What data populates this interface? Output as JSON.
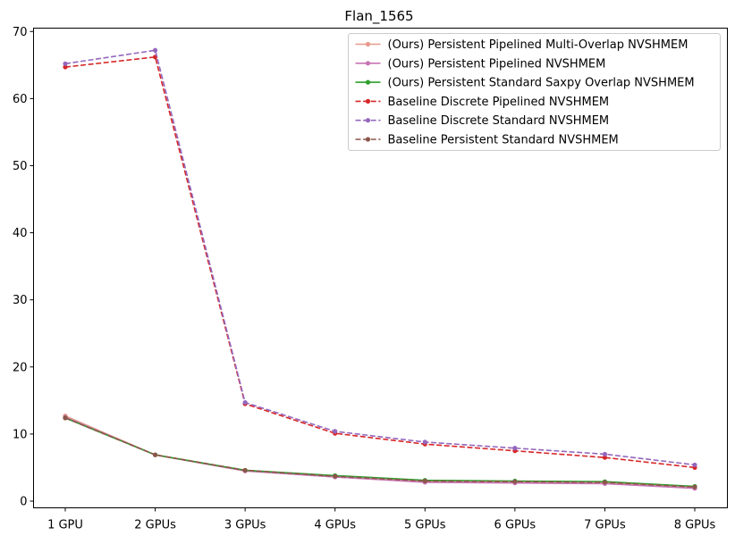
{
  "chart_data": {
    "type": "line",
    "title": "Flan_1565",
    "xlabel": "",
    "ylabel": "",
    "categories": [
      "1 GPU",
      "2 GPUs",
      "3 GPUs",
      "4 GPUs",
      "5 GPUs",
      "6 GPUs",
      "7 GPUs",
      "8 GPUs"
    ],
    "ylim": [
      -1,
      70.5
    ],
    "yticks": [
      0,
      10,
      20,
      30,
      40,
      50,
      60,
      70
    ],
    "grid": false,
    "legend_position": "top-right",
    "series": [
      {
        "name": "(Ours) Persistent Pipelined Multi-Overlap NVSHMEM",
        "color": "#e8998d",
        "dash": "solid",
        "values": [
          12.7,
          6.9,
          4.5,
          3.6,
          2.9,
          2.8,
          2.7,
          2.0
        ]
      },
      {
        "name": "(Ours) Persistent Pipelined NVSHMEM",
        "color": "#c774b4",
        "dash": "solid",
        "values": [
          12.5,
          6.9,
          4.5,
          3.6,
          2.8,
          2.7,
          2.6,
          1.9
        ]
      },
      {
        "name": "(Ours) Persistent Standard Saxpy Overlap NVSHMEM",
        "color": "#2ca02c",
        "dash": "solid",
        "values": [
          12.4,
          6.9,
          4.6,
          3.8,
          3.1,
          3.0,
          2.9,
          2.2
        ]
      },
      {
        "name": "Baseline Discrete Pipelined NVSHMEM",
        "color": "#d62728",
        "dash": "dashed",
        "values": [
          64.7,
          66.2,
          14.5,
          10.1,
          8.5,
          7.5,
          6.5,
          5.0
        ]
      },
      {
        "name": "Baseline Discrete Standard NVSHMEM",
        "color": "#9467bd",
        "dash": "dashed",
        "values": [
          65.2,
          67.2,
          14.7,
          10.4,
          8.8,
          7.9,
          7.0,
          5.4
        ]
      },
      {
        "name": "Baseline Persistent Standard NVSHMEM",
        "color": "#8c564b",
        "dash": "dashed",
        "values": [
          12.4,
          6.9,
          4.6,
          3.7,
          3.0,
          2.9,
          2.8,
          2.1
        ]
      }
    ]
  }
}
